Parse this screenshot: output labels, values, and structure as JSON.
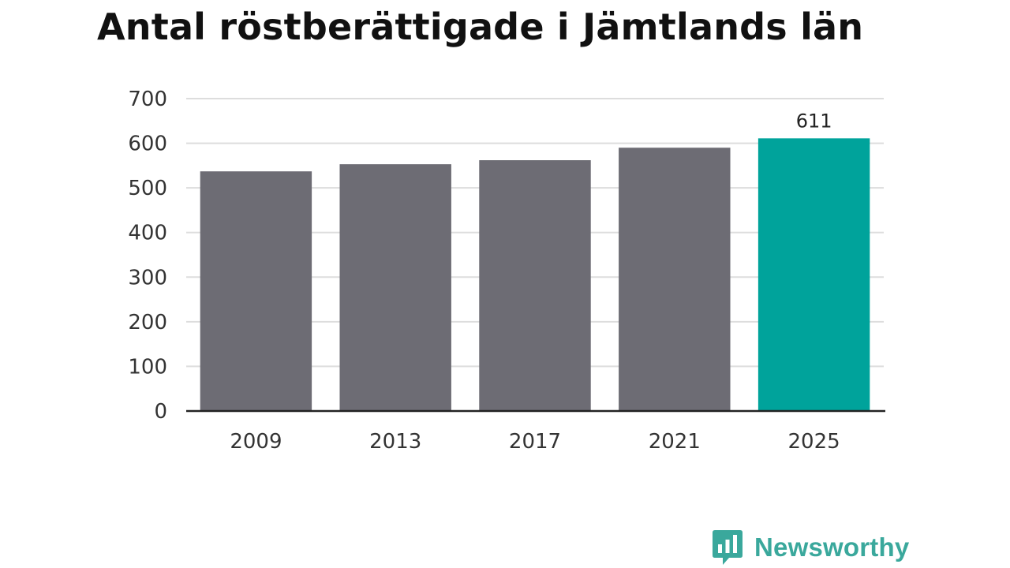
{
  "title": "Antal röstberättigade i Jämtlands län",
  "brand": {
    "name": "Newsworthy",
    "color": "#3aa89c",
    "icon": "bar-chart-speech-bubble-icon"
  },
  "chart_data": {
    "type": "bar",
    "title": "Antal röstberättigade i Jämtlands län",
    "xlabel": "",
    "ylabel": "",
    "categories": [
      "2009",
      "2013",
      "2017",
      "2021",
      "2025"
    ],
    "values": [
      537,
      553,
      562,
      590,
      611
    ],
    "data_labels": [
      null,
      null,
      null,
      null,
      "611"
    ],
    "ylim": [
      0,
      700
    ],
    "yticks": [
      0,
      100,
      200,
      300,
      400,
      500,
      600,
      700
    ],
    "grid": true,
    "legend": "none",
    "colors": {
      "default_bar": "#6d6c74",
      "highlight_bar": "#00a39b",
      "gridline": "#dddddd",
      "baseline": "#222222"
    },
    "highlight_index": 4
  }
}
